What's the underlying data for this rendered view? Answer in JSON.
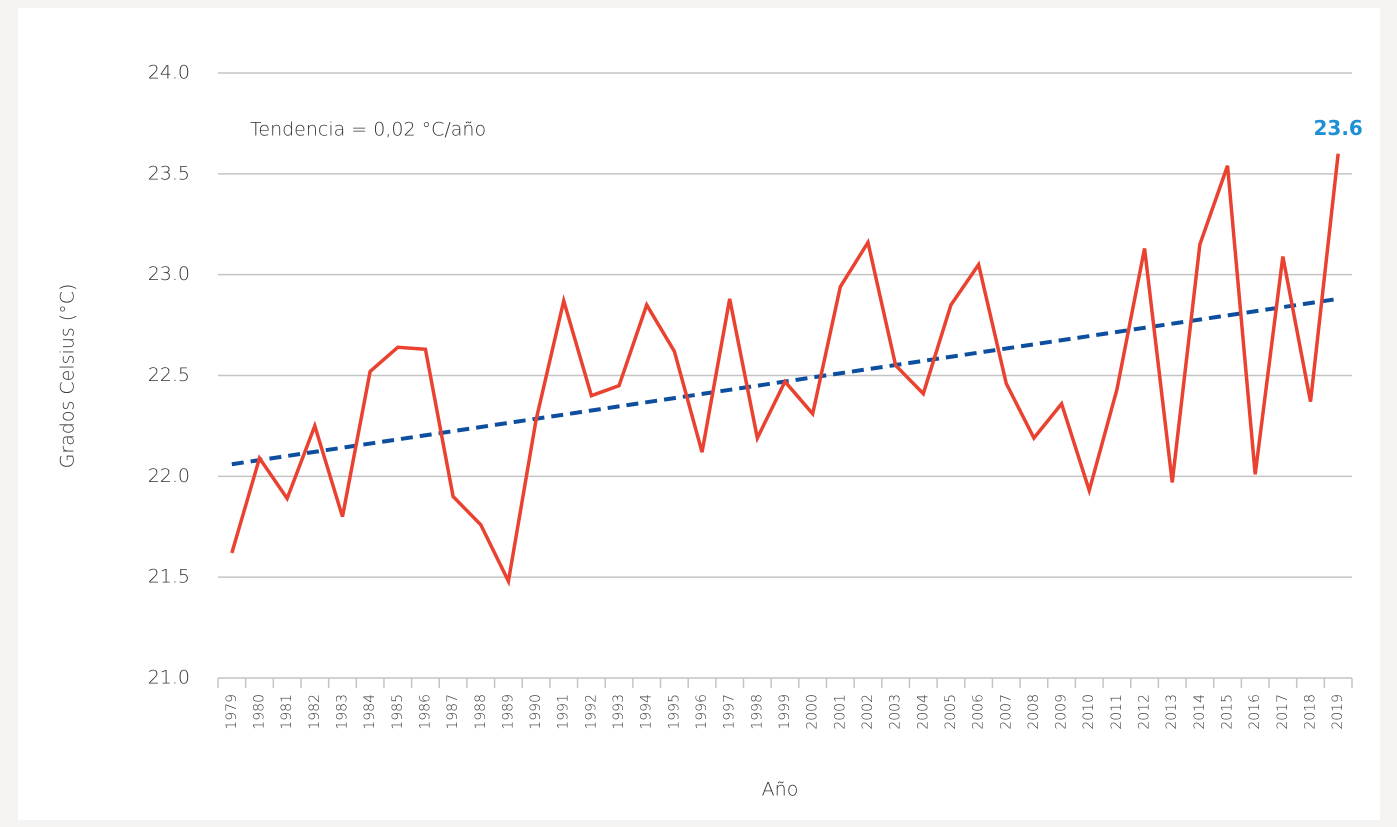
{
  "chart_data": {
    "type": "line",
    "x_label": "Año",
    "y_label": "Grados Celsius (°C)",
    "annotation": "Tendencia = 0,02 °C/año",
    "categories": [
      "1979",
      "1980",
      "1981",
      "1982",
      "1983",
      "1984",
      "1985",
      "1986",
      "1987",
      "1988",
      "1989",
      "1990",
      "1991",
      "1992",
      "1993",
      "1994",
      "1995",
      "1996",
      "1997",
      "1998",
      "1999",
      "2000",
      "2001",
      "2002",
      "2003",
      "2004",
      "2005",
      "2006",
      "2007",
      "2008",
      "2009",
      "2010",
      "2011",
      "2012",
      "2013",
      "2014",
      "2015",
      "2016",
      "2017",
      "2018",
      "2019"
    ],
    "values": [
      21.62,
      22.09,
      21.89,
      22.25,
      21.8,
      22.52,
      22.64,
      22.63,
      21.9,
      21.76,
      21.48,
      22.28,
      22.87,
      22.4,
      22.45,
      22.85,
      22.62,
      22.12,
      22.88,
      22.19,
      22.47,
      22.31,
      22.94,
      23.16,
      22.55,
      22.41,
      22.85,
      23.05,
      22.46,
      22.19,
      22.36,
      21.93,
      22.43,
      23.13,
      21.97,
      23.15,
      23.54,
      22.01,
      23.09,
      22.37,
      23.6
    ],
    "value_labels": [
      null,
      null,
      null,
      null,
      null,
      null,
      null,
      null,
      null,
      null,
      null,
      null,
      null,
      null,
      null,
      null,
      null,
      null,
      null,
      null,
      null,
      null,
      null,
      null,
      null,
      null,
      null,
      null,
      null,
      null,
      null,
      null,
      null,
      null,
      null,
      null,
      null,
      null,
      null,
      null,
      "23.6"
    ],
    "value_label_color": "#1f8fd6",
    "color": "#ea4230",
    "trend": {
      "x": [
        "1979",
        "2019"
      ],
      "values": [
        22.06,
        22.88
      ],
      "color": "#0d4f9e",
      "dashed": true
    },
    "ylim": [
      21,
      24
    ],
    "yticks": [
      {
        "value": 21,
        "label": "21.0"
      },
      {
        "value": 21.5,
        "label": "21.5"
      },
      {
        "value": 22,
        "label": "22.0"
      },
      {
        "value": 22.5,
        "label": "22.5"
      },
      {
        "value": 23,
        "label": "23.0"
      },
      {
        "value": 23.5,
        "label": "23.5"
      },
      {
        "value": 24,
        "label": "24.0"
      }
    ],
    "grid": true
  }
}
